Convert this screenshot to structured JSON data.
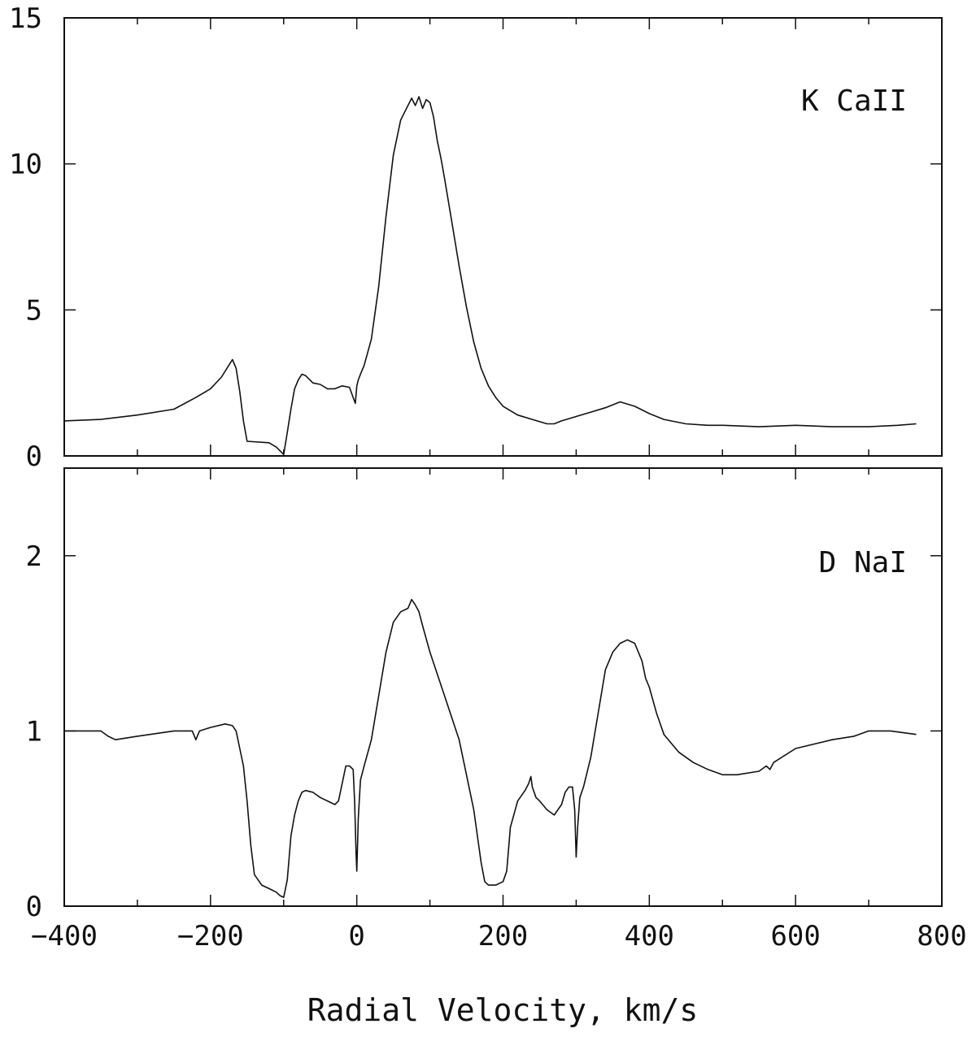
{
  "chart_data": [
    {
      "type": "line",
      "panel": "top",
      "label": "K CaII",
      "xlabel": "",
      "ylabel": "",
      "xlim": [
        -400,
        800
      ],
      "ylim": [
        0,
        15
      ],
      "x_ticks": [
        -400,
        -200,
        0,
        200,
        400,
        600,
        800
      ],
      "y_ticks": [
        0,
        5,
        10,
        15
      ],
      "y_tick_labels": [
        "0",
        "5",
        "10",
        "15"
      ],
      "grid": false,
      "series": [
        {
          "x": [
            -400,
            -350,
            -300,
            -250,
            -220,
            -200,
            -185,
            -175,
            -170,
            -165,
            -160,
            -155,
            -150,
            -120,
            -110,
            -100,
            -95,
            -90,
            -85,
            -80,
            -75,
            -70,
            -60,
            -50,
            -40,
            -30,
            -20,
            -10,
            -5,
            -2,
            0,
            2,
            5,
            10,
            20,
            30,
            40,
            50,
            60,
            70,
            75,
            80,
            85,
            90,
            95,
            100,
            105,
            110,
            115,
            120,
            130,
            140,
            150,
            160,
            170,
            180,
            190,
            200,
            220,
            240,
            260,
            270,
            280,
            300,
            320,
            340,
            360,
            380,
            400,
            420,
            450,
            480,
            500,
            550,
            600,
            650,
            700,
            740,
            765
          ],
          "y": [
            1.2,
            1.25,
            1.4,
            1.6,
            2.0,
            2.3,
            2.7,
            3.1,
            3.3,
            3.0,
            2.2,
            1.2,
            0.5,
            0.45,
            0.3,
            0.05,
            0.8,
            1.6,
            2.3,
            2.6,
            2.8,
            2.75,
            2.5,
            2.45,
            2.3,
            2.3,
            2.4,
            2.35,
            2.0,
            1.8,
            2.4,
            2.6,
            2.8,
            3.1,
            4.0,
            5.8,
            8.2,
            10.3,
            11.5,
            12.0,
            12.25,
            12.0,
            12.3,
            11.9,
            12.2,
            12.1,
            11.6,
            10.8,
            10.2,
            9.5,
            8.0,
            6.5,
            5.1,
            3.9,
            3.0,
            2.4,
            2.0,
            1.7,
            1.4,
            1.25,
            1.1,
            1.1,
            1.2,
            1.35,
            1.5,
            1.65,
            1.85,
            1.7,
            1.45,
            1.25,
            1.1,
            1.05,
            1.05,
            1.0,
            1.05,
            1.0,
            1.0,
            1.05,
            1.1
          ]
        }
      ]
    },
    {
      "type": "line",
      "panel": "bottom",
      "label": "D NaI",
      "xlabel": "Radial Velocity, km/s",
      "ylabel": "",
      "xlim": [
        -400,
        800
      ],
      "ylim": [
        0,
        2.5
      ],
      "x_ticks": [
        -400,
        -200,
        0,
        200,
        400,
        600,
        800
      ],
      "x_tick_labels": [
        "−400",
        "−200",
        "0",
        "200",
        "400",
        "600",
        "800"
      ],
      "y_ticks": [
        0,
        1,
        2
      ],
      "y_tick_labels": [
        "0",
        "1",
        "2"
      ],
      "grid": false,
      "series": [
        {
          "x": [
            -400,
            -370,
            -350,
            -340,
            -330,
            -300,
            -250,
            -225,
            -220,
            -215,
            -200,
            -180,
            -170,
            -165,
            -160,
            -155,
            -150,
            -145,
            -140,
            -130,
            -120,
            -110,
            -105,
            -100,
            -95,
            -90,
            -85,
            -80,
            -75,
            -70,
            -60,
            -50,
            -40,
            -30,
            -25,
            -20,
            -15,
            -10,
            -5,
            -3,
            -1,
            0,
            2,
            5,
            10,
            20,
            30,
            40,
            50,
            60,
            70,
            75,
            80,
            85,
            90,
            100,
            120,
            140,
            160,
            170,
            175,
            180,
            190,
            200,
            205,
            210,
            220,
            230,
            235,
            238,
            240,
            245,
            250,
            260,
            270,
            280,
            285,
            290,
            295,
            298,
            300,
            302,
            305,
            310,
            320,
            330,
            340,
            350,
            360,
            370,
            380,
            390,
            395,
            400,
            410,
            420,
            440,
            460,
            480,
            500,
            520,
            550,
            560,
            565,
            570,
            600,
            650,
            680,
            700,
            730,
            765
          ],
          "y": [
            1.0,
            1.0,
            1.0,
            0.97,
            0.95,
            0.97,
            1.0,
            1.0,
            0.95,
            1.0,
            1.02,
            1.04,
            1.03,
            1.0,
            0.9,
            0.8,
            0.6,
            0.35,
            0.18,
            0.12,
            0.1,
            0.08,
            0.06,
            0.05,
            0.15,
            0.4,
            0.52,
            0.6,
            0.65,
            0.66,
            0.65,
            0.62,
            0.6,
            0.58,
            0.6,
            0.7,
            0.8,
            0.8,
            0.78,
            0.6,
            0.3,
            0.2,
            0.5,
            0.72,
            0.8,
            0.95,
            1.2,
            1.45,
            1.62,
            1.68,
            1.7,
            1.75,
            1.72,
            1.68,
            1.6,
            1.45,
            1.2,
            0.95,
            0.55,
            0.25,
            0.14,
            0.12,
            0.12,
            0.14,
            0.2,
            0.45,
            0.6,
            0.66,
            0.7,
            0.74,
            0.68,
            0.62,
            0.6,
            0.55,
            0.52,
            0.58,
            0.65,
            0.68,
            0.68,
            0.55,
            0.28,
            0.45,
            0.62,
            0.68,
            0.85,
            1.1,
            1.35,
            1.45,
            1.5,
            1.52,
            1.5,
            1.4,
            1.3,
            1.25,
            1.1,
            0.98,
            0.88,
            0.82,
            0.78,
            0.75,
            0.75,
            0.77,
            0.8,
            0.78,
            0.82,
            0.9,
            0.95,
            0.97,
            1.0,
            1.0,
            0.98
          ]
        }
      ]
    }
  ]
}
